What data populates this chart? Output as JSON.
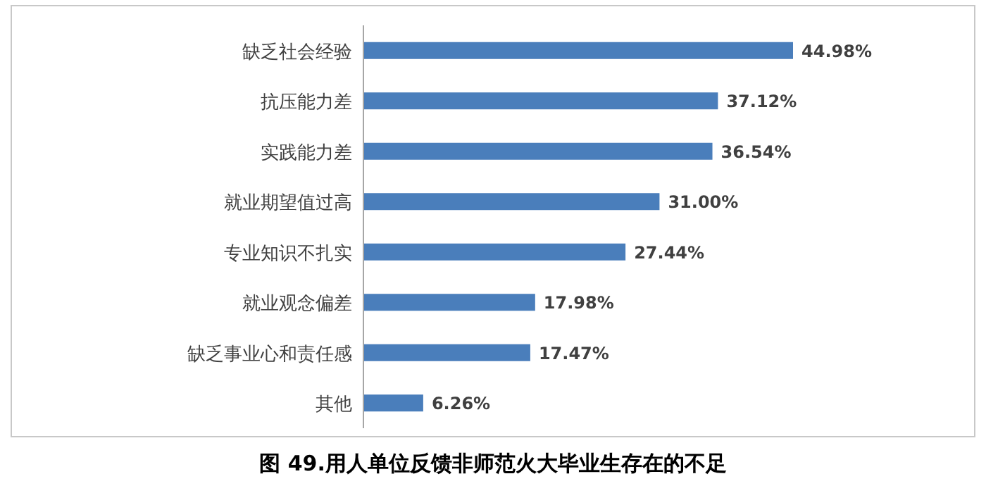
{
  "chart_data": {
    "type": "bar",
    "orientation": "horizontal",
    "title": "图 49.用人单位反馈非师范火大毕业生存在的不足",
    "categories": [
      "缺乏社会经验",
      "抗压能力差",
      "实践能力差",
      "就业期望值过高",
      "专业知识不扎实",
      "就业观念偏差",
      "缺乏事业心和责任感",
      "其他"
    ],
    "values": [
      44.98,
      37.12,
      36.54,
      31.0,
      27.44,
      17.98,
      17.47,
      6.26
    ],
    "value_labels": [
      "44.98%",
      "37.12%",
      "36.54%",
      "31.00%",
      "27.44%",
      "17.98%",
      "17.47%",
      "6.26%"
    ],
    "color": "#4a7ebb"
  }
}
